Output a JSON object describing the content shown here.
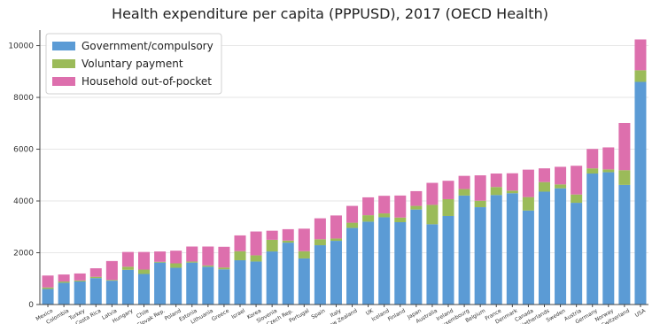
{
  "chart_data": {
    "type": "bar",
    "stacked": true,
    "title": "Health expenditure per capita (PPPUSD), 2017 (OECD Health)",
    "xlabel": "",
    "ylabel": "",
    "ylim": [
      0,
      10600
    ],
    "yticks": [
      0,
      2000,
      4000,
      6000,
      8000,
      10000
    ],
    "grid": true,
    "legend_position": "top-left",
    "categories": [
      "Mexico",
      "Colombia",
      "Turkey",
      "Costa Rica",
      "Latvia",
      "Hungary",
      "Chile",
      "Slovak Rep.",
      "Poland",
      "Estonia",
      "Lithuania",
      "Greece",
      "Israel",
      "Korea",
      "Slovenia",
      "Czech Rep.",
      "Portugal",
      "Spain",
      "Italy",
      "New Zealand",
      "UK",
      "Iceland",
      "Finland",
      "Japan",
      "Australia",
      "Ireland",
      "Luxembourg",
      "Belgium",
      "France",
      "Denmark",
      "Canada",
      "Netherlands",
      "Sweden",
      "Austria",
      "Germany",
      "Norway",
      "Switzerland",
      "USA"
    ],
    "series": [
      {
        "name": "Government/compulsory",
        "color": "#5b9bd5",
        "values": [
          600,
          840,
          890,
          1020,
          920,
          1340,
          1180,
          1620,
          1420,
          1620,
          1460,
          1360,
          1710,
          1660,
          2050,
          2390,
          1780,
          2290,
          2460,
          2960,
          3200,
          3370,
          3180,
          3670,
          3100,
          3420,
          4210,
          3760,
          4230,
          4300,
          3630,
          4360,
          4490,
          3930,
          5060,
          5110,
          4620,
          8600
        ]
      },
      {
        "name": "Voluntary payment",
        "color": "#9bbb59",
        "values": [
          60,
          50,
          40,
          50,
          30,
          120,
          170,
          30,
          170,
          40,
          50,
          70,
          350,
          240,
          450,
          80,
          280,
          230,
          90,
          200,
          250,
          150,
          180,
          140,
          750,
          650,
          250,
          250,
          310,
          100,
          520,
          370,
          150,
          320,
          200,
          110,
          570,
          450
        ]
      },
      {
        "name": "Household out-of-pocket",
        "color": "#dd6fad",
        "values": [
          460,
          270,
          270,
          330,
          730,
          570,
          680,
          400,
          490,
          580,
          730,
          800,
          610,
          920,
          350,
          440,
          870,
          810,
          890,
          650,
          690,
          680,
          850,
          570,
          850,
          710,
          510,
          980,
          520,
          670,
          1060,
          530,
          680,
          1110,
          750,
          850,
          1820,
          1190
        ]
      }
    ]
  }
}
